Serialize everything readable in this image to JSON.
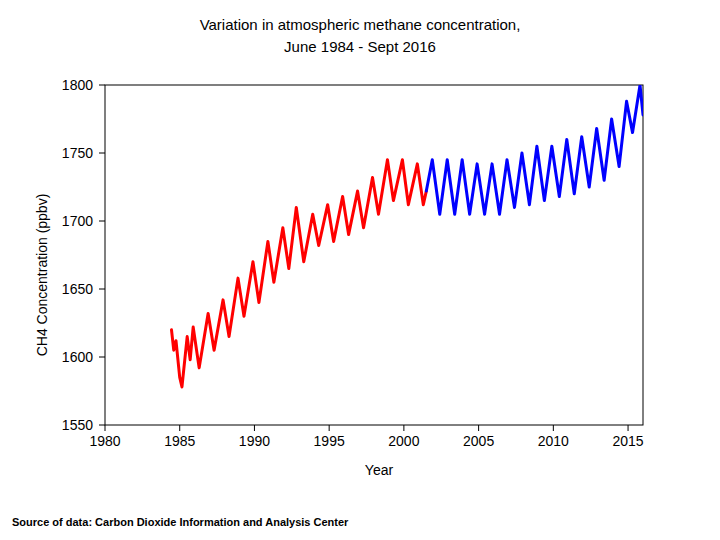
{
  "chart_data": {
    "type": "line",
    "title": [
      "Variation in atmospheric methane concentration,",
      "June 1984 - Sept 2016"
    ],
    "x_label": "Year",
    "y_label": "CH4 Concentration (ppbv)",
    "annotations": [
      "Source of data: Carbon Dioxide Information and Analysis Center"
    ],
    "x": [
      1984.45,
      1984.6,
      1984.75,
      1985.0,
      1985.15,
      1985.5,
      1985.7,
      1985.9,
      1986.3,
      1986.9,
      1987.3,
      1987.9,
      1988.3,
      1988.9,
      1989.3,
      1989.9,
      1990.3,
      1990.9,
      1991.3,
      1991.9,
      1992.3,
      1992.8,
      1993.3,
      1993.9,
      1994.3,
      1994.9,
      1995.3,
      1995.9,
      1996.3,
      1996.9,
      1997.3,
      1997.9,
      1998.3,
      1998.9,
      1999.3,
      1999.9,
      2000.3,
      2000.9,
      2001.3,
      2001.5,
      2001.9,
      2002.4,
      2002.9,
      2003.4,
      2003.9,
      2004.4,
      2004.9,
      2005.4,
      2005.9,
      2006.4,
      2006.9,
      2007.4,
      2007.9,
      2008.4,
      2008.9,
      2009.4,
      2009.9,
      2010.4,
      2010.9,
      2011.4,
      2011.9,
      2012.4,
      2012.9,
      2013.4,
      2013.9,
      2014.4,
      2014.9,
      2015.3,
      2015.8,
      2016.0
    ],
    "series": [
      {
        "color": "#ff0000",
        "values": [
          1620,
          1605,
          1612,
          1585,
          1578,
          1615,
          1598,
          1622,
          1592,
          1632,
          1605,
          1642,
          1615,
          1658,
          1630,
          1670,
          1640,
          1685,
          1655,
          1695,
          1665,
          1710,
          1670,
          1705,
          1682,
          1712,
          1685,
          1718,
          1690,
          1722,
          1695,
          1732,
          1705,
          1745,
          1715,
          1745,
          1712,
          1742,
          1712,
          1722,
          null,
          null,
          null,
          null,
          null,
          null,
          null,
          null,
          null,
          null,
          null,
          null,
          null,
          null,
          null,
          null,
          null,
          null,
          null,
          null,
          null,
          null,
          null,
          null,
          null,
          null,
          null,
          null,
          null,
          null
        ]
      },
      {
        "color": "#0000ff",
        "values": [
          null,
          null,
          null,
          null,
          null,
          null,
          null,
          null,
          null,
          null,
          null,
          null,
          null,
          null,
          null,
          null,
          null,
          null,
          null,
          null,
          null,
          null,
          null,
          null,
          null,
          null,
          null,
          null,
          null,
          null,
          null,
          null,
          null,
          null,
          null,
          null,
          null,
          null,
          null,
          1722,
          1745,
          1705,
          1745,
          1705,
          1745,
          1705,
          1742,
          1705,
          1742,
          1705,
          1745,
          1710,
          1750,
          1712,
          1755,
          1715,
          1755,
          1718,
          1760,
          1720,
          1762,
          1725,
          1768,
          1730,
          1775,
          1740,
          1788,
          1765,
          1800,
          1778
        ]
      }
    ],
    "xlim": [
      1980,
      2016
    ],
    "xticks": [
      1980,
      1985,
      1990,
      1995,
      2000,
      2005,
      2010,
      2015
    ],
    "ylim": [
      1550,
      1800
    ],
    "yticks": [
      1550,
      1600,
      1650,
      1700,
      1750,
      1800
    ],
    "grid": false
  }
}
